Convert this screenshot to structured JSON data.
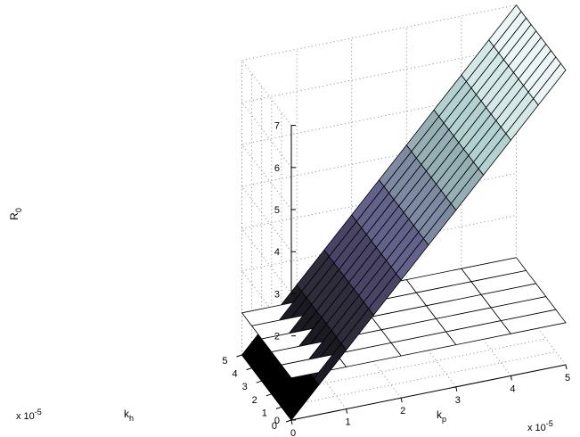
{
  "chart_data": {
    "type": "surface",
    "title": "",
    "zlabel": "R",
    "zlabel_subscript": "0",
    "xlabel": "k",
    "xlabel_subscript": "p",
    "ylabel": "k",
    "ylabel_subscript": "h",
    "x_exponent": "x 10",
    "x_exponent_power": "-5",
    "y_exponent": "x 10",
    "y_exponent_power": "-5",
    "x_ticks": [
      "0",
      "1",
      "2",
      "3",
      "4",
      "5"
    ],
    "y_ticks": [
      "0",
      "1",
      "2",
      "3",
      "4",
      "5"
    ],
    "z_ticks": [
      "0",
      "1",
      "2",
      "3",
      "4",
      "5",
      "6",
      "7"
    ],
    "xlim": [
      0,
      5
    ],
    "ylim": [
      0,
      5
    ],
    "zlim": [
      0,
      7
    ],
    "grid": true,
    "x": [
      0,
      0.5,
      1,
      1.5,
      2,
      2.5,
      3,
      3.5,
      4,
      4.5,
      5
    ],
    "y": [
      0,
      0.5,
      1,
      1.5,
      2,
      2.5,
      3,
      3.5,
      4,
      4.5,
      5
    ],
    "surfaces": [
      {
        "name": "",
        "description_values": "R0 rises linearly with k_p, constant in k_h",
        "z_at_x": [
          {
            "x": 0.0,
            "z": 0.0
          },
          {
            "x": 0.5,
            "z": 0.7
          },
          {
            "x": 1.0,
            "z": 1.4
          },
          {
            "x": 1.5,
            "z": 2.1
          },
          {
            "x": 2.0,
            "z": 2.8
          },
          {
            "x": 2.5,
            "z": 3.5
          },
          {
            "x": 3.0,
            "z": 4.2
          },
          {
            "x": 3.5,
            "z": 4.9
          },
          {
            "x": 4.0,
            "z": 5.6
          },
          {
            "x": 4.5,
            "z": 6.3
          },
          {
            "x": 5.0,
            "z": 7.0
          }
        ]
      },
      {
        "name": "",
        "description_values": "reference plane",
        "z": 1
      }
    ],
    "colormap": [
      "#000000",
      "#1c1a22",
      "#2f2c3c",
      "#4a4566",
      "#62628a",
      "#7d8aa1",
      "#96afb5",
      "#b3d1d1",
      "#d4e8e8",
      "#ecf6f6"
    ]
  }
}
